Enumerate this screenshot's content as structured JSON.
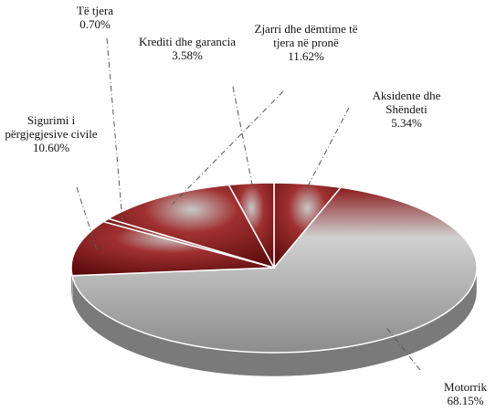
{
  "chart_data": {
    "type": "pie",
    "categories": [
      "Aksidente dhe Shëndeti",
      "Motorrik",
      "Sigurimi i përgjegjesive civile",
      "Të tjera",
      "Zjarri dhe dëmtime të tjera në pronë",
      "Krediti dhe garancia"
    ],
    "values": [
      5.34,
      68.15,
      10.6,
      0.7,
      11.62,
      3.58
    ],
    "value_labels": [
      "5.34%",
      "68.15%",
      "10.60%",
      "0.70%",
      "11.62%",
      "3.58%"
    ],
    "colors": [
      "#7d1214",
      "#a9a9a9",
      "#7d1214",
      "#7d1214",
      "#7d1214",
      "#7d1214"
    ]
  }
}
